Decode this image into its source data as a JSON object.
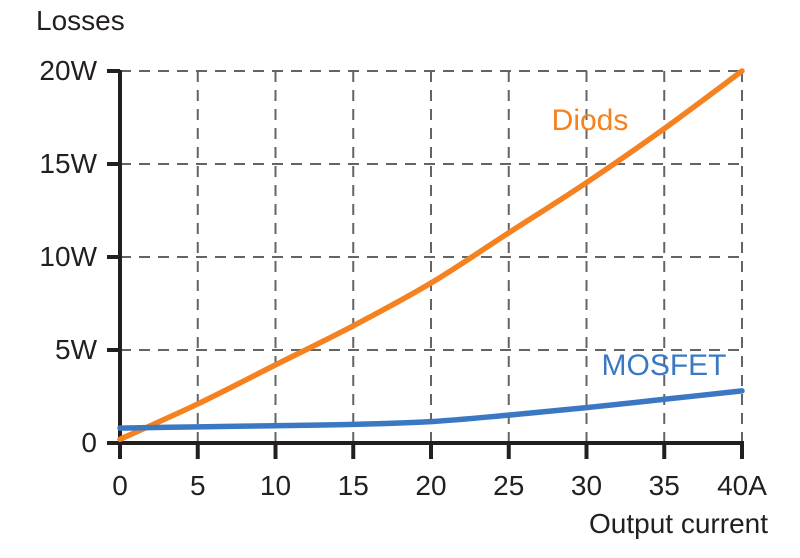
{
  "chart_data": {
    "type": "line",
    "title": "",
    "ylabel": "Losses",
    "xlabel": "Output current",
    "x_unit": "A",
    "y_unit": "W",
    "xlim": [
      0,
      40
    ],
    "ylim": [
      0,
      20
    ],
    "grid": "dashed",
    "legend_position": "inline-labels",
    "x": [
      0,
      5,
      10,
      15,
      20,
      25,
      30,
      35,
      40
    ],
    "x_tick_labels": [
      "0",
      "5",
      "10",
      "15",
      "20",
      "25",
      "30",
      "35",
      "40A"
    ],
    "y_ticks": [
      0,
      5,
      10,
      15,
      20
    ],
    "y_tick_labels": [
      "0",
      "5W",
      "10W",
      "15W",
      "20W"
    ],
    "series": [
      {
        "name": "Diods",
        "label": "Diods",
        "color": "#F58220",
        "values": [
          0.2,
          2.1,
          4.2,
          6.3,
          8.6,
          11.3,
          14.0,
          16.9,
          20.0
        ]
      },
      {
        "name": "MOSFET",
        "label": "MOSFET",
        "color": "#3B78C4",
        "values": [
          0.8,
          0.87,
          0.93,
          1.0,
          1.15,
          1.5,
          1.9,
          2.35,
          2.8
        ]
      }
    ],
    "colors": {
      "axis": "#231F20",
      "grid": "#636466",
      "text": "#231F20"
    }
  }
}
